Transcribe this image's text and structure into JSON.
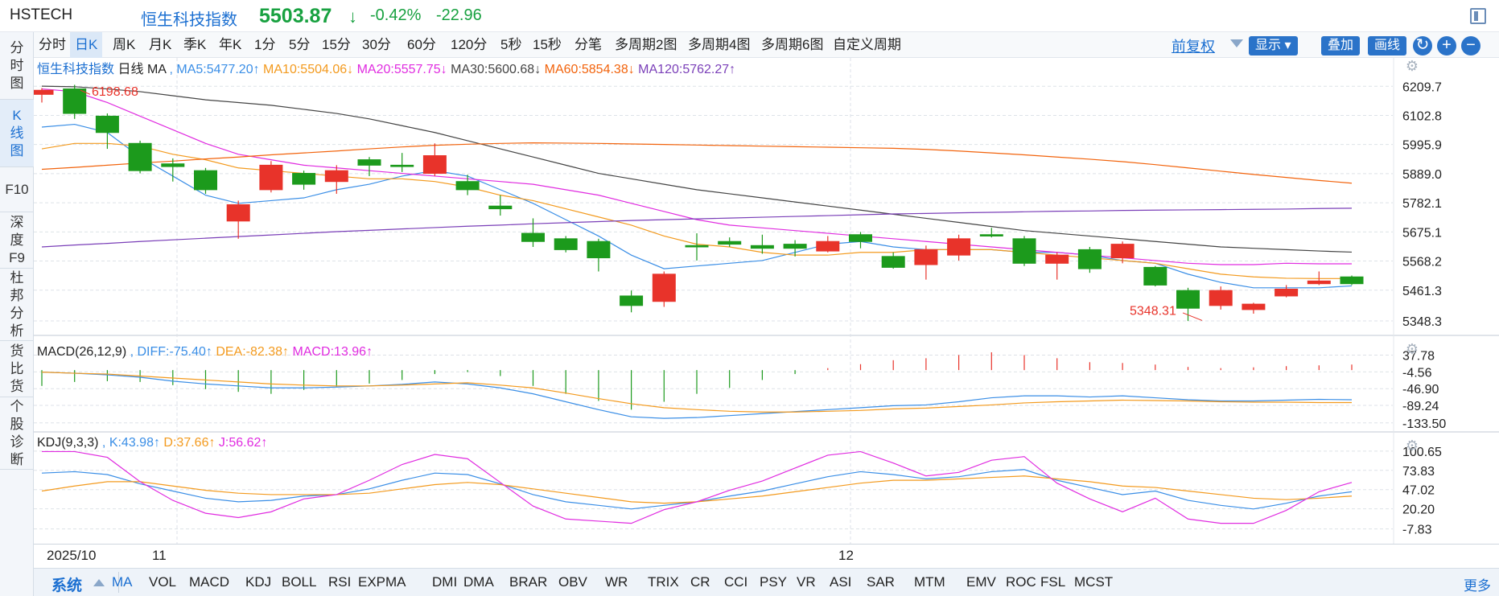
{
  "title": {
    "code": "HSTECH",
    "name": "恒生科技指数",
    "price": "5503.87",
    "arrow": "↓",
    "change_pct": "-0.42%",
    "change": "-22.96"
  },
  "left_tabs": [
    {
      "label": "分时图",
      "active": false
    },
    {
      "label": "K线图",
      "active": true
    },
    {
      "label": "F10",
      "active": false
    },
    {
      "label": "深度F9",
      "active": false
    },
    {
      "label": "杜邦分析",
      "active": false
    },
    {
      "label": "货比货",
      "active": false
    },
    {
      "label": "个股诊断",
      "active": false
    }
  ],
  "toolbar": {
    "periods": [
      "分时",
      "日K",
      "周K",
      "月K",
      "季K",
      "年K",
      "1分",
      "5分",
      "15分",
      "30分",
      "60分",
      "120分",
      "5秒",
      "15秒",
      "分笔",
      "多周期2图",
      "多周期4图",
      "多周期6图",
      "自定义周期"
    ],
    "active_period": "日K",
    "fuquan": "前复权",
    "display_label": "显示",
    "overlay_label": "叠加",
    "draw_label": "画线"
  },
  "main_legend": {
    "name": "恒生科技指数",
    "period": "日线",
    "indicator": "MA",
    "items": [
      {
        "text": "MA5:5477.20↑",
        "color": "#3a8ee6"
      },
      {
        "text": "MA10:5504.06↓",
        "color": "#f39a1e"
      },
      {
        "text": "MA20:5557.75↓",
        "color": "#e02ce0"
      },
      {
        "text": "MA30:5600.68↓",
        "color": "#444444"
      },
      {
        "text": "MA60:5854.38↓",
        "color": "#f2630c"
      },
      {
        "text": "MA120:5762.27↑",
        "color": "#7a3fb8"
      }
    ]
  },
  "main_axis": [
    "6209.7",
    "6102.8",
    "5995.9",
    "5889.0",
    "5782.1",
    "5675.1",
    "5568.2",
    "5461.3",
    "5348.3"
  ],
  "annotations": {
    "high": "6198.68",
    "low": "5348.31"
  },
  "macd_legend": {
    "name": "MACD(26,12,9)",
    "items": [
      {
        "text": "DIFF:-75.40↑",
        "color": "#3a8ee6"
      },
      {
        "text": "DEA:-82.38↑",
        "color": "#f39a1e"
      },
      {
        "text": "MACD:13.96↑",
        "color": "#e02ce0"
      }
    ]
  },
  "macd_axis": [
    "37.78",
    "-4.56",
    "-46.90",
    "-89.24",
    "-133.50"
  ],
  "kdj_legend": {
    "name": "KDJ(9,3,3)",
    "items": [
      {
        "text": "K:43.98↑",
        "color": "#3a8ee6"
      },
      {
        "text": "D:37.66↑",
        "color": "#f39a1e"
      },
      {
        "text": "J:56.62↑",
        "color": "#e02ce0"
      }
    ]
  },
  "kdj_axis": [
    "100.65",
    "73.83",
    "47.02",
    "20.20",
    "-7.83"
  ],
  "date_labels": [
    "2025/10",
    "11",
    "12"
  ],
  "indicator_bar": {
    "system": "系统",
    "items": [
      "MA",
      "VOL",
      "MACD",
      "KDJ",
      "BOLL",
      "RSI",
      "EXPMA",
      "DMI",
      "DMA",
      "BRAR",
      "OBV",
      "WR",
      "TRIX",
      "CR",
      "CCI",
      "PSY",
      "VR",
      "ASI",
      "SAR",
      "MTM",
      "EMV",
      "ROC",
      "FSL",
      "MCST"
    ],
    "active": "MA",
    "more": "更多"
  },
  "chart_data": {
    "type": "candlestick",
    "main_ylim": [
      5310,
      6240
    ],
    "candles": [
      {
        "o": 6180,
        "c": 6195,
        "h": 6203,
        "l": 6150
      },
      {
        "o": 6200,
        "c": 6110,
        "h": 6215,
        "l": 6090
      },
      {
        "o": 6100,
        "c": 6040,
        "h": 6110,
        "l": 5980
      },
      {
        "o": 6000,
        "c": 5900,
        "h": 6010,
        "l": 5890
      },
      {
        "o": 5925,
        "c": 5915,
        "h": 5945,
        "l": 5860
      },
      {
        "o": 5900,
        "c": 5830,
        "h": 5910,
        "l": 5815
      },
      {
        "o": 5715,
        "c": 5775,
        "h": 5790,
        "l": 5650
      },
      {
        "o": 5830,
        "c": 5920,
        "h": 5935,
        "l": 5820
      },
      {
        "o": 5890,
        "c": 5850,
        "h": 5900,
        "l": 5830
      },
      {
        "o": 5860,
        "c": 5900,
        "h": 5920,
        "l": 5815
      },
      {
        "o": 5940,
        "c": 5920,
        "h": 5950,
        "l": 5880
      },
      {
        "o": 5920,
        "c": 5915,
        "h": 5965,
        "l": 5895
      },
      {
        "o": 5890,
        "c": 5955,
        "h": 6000,
        "l": 5880
      },
      {
        "o": 5860,
        "c": 5830,
        "h": 5885,
        "l": 5810
      },
      {
        "o": 5770,
        "c": 5760,
        "h": 5810,
        "l": 5735
      },
      {
        "o": 5670,
        "c": 5640,
        "h": 5725,
        "l": 5620
      },
      {
        "o": 5650,
        "c": 5610,
        "h": 5660,
        "l": 5600
      },
      {
        "o": 5640,
        "c": 5580,
        "h": 5650,
        "l": 5530
      },
      {
        "o": 5440,
        "c": 5405,
        "h": 5460,
        "l": 5380
      },
      {
        "o": 5420,
        "c": 5520,
        "h": 5530,
        "l": 5400
      },
      {
        "o": 5625,
        "c": 5620,
        "h": 5670,
        "l": 5570
      },
      {
        "o": 5640,
        "c": 5630,
        "h": 5655,
        "l": 5620
      },
      {
        "o": 5625,
        "c": 5615,
        "h": 5665,
        "l": 5595
      },
      {
        "o": 5630,
        "c": 5615,
        "h": 5645,
        "l": 5585
      },
      {
        "o": 5605,
        "c": 5640,
        "h": 5660,
        "l": 5600
      },
      {
        "o": 5665,
        "c": 5640,
        "h": 5675,
        "l": 5615
      },
      {
        "o": 5585,
        "c": 5545,
        "h": 5600,
        "l": 5540
      },
      {
        "o": 5555,
        "c": 5610,
        "h": 5625,
        "l": 5500
      },
      {
        "o": 5590,
        "c": 5650,
        "h": 5665,
        "l": 5570
      },
      {
        "o": 5665,
        "c": 5660,
        "h": 5690,
        "l": 5655
      },
      {
        "o": 5650,
        "c": 5560,
        "h": 5660,
        "l": 5550
      },
      {
        "o": 5560,
        "c": 5590,
        "h": 5600,
        "l": 5500
      },
      {
        "o": 5610,
        "c": 5540,
        "h": 5620,
        "l": 5525
      },
      {
        "o": 5580,
        "c": 5630,
        "h": 5640,
        "l": 5560
      },
      {
        "o": 5545,
        "c": 5480,
        "h": 5550,
        "l": 5475
      },
      {
        "o": 5460,
        "c": 5395,
        "h": 5470,
        "l": 5348
      },
      {
        "o": 5405,
        "c": 5460,
        "h": 5475,
        "l": 5390
      },
      {
        "o": 5390,
        "c": 5410,
        "h": 5415,
        "l": 5375
      },
      {
        "o": 5440,
        "c": 5465,
        "h": 5480,
        "l": 5435
      },
      {
        "o": 5485,
        "c": 5495,
        "h": 5530,
        "l": 5480
      },
      {
        "o": 5510,
        "c": 5485,
        "h": 5515,
        "l": 5480
      }
    ],
    "ma": {
      "MA5": [
        6060,
        6070,
        6040,
        5950,
        5880,
        5810,
        5780,
        5790,
        5800,
        5830,
        5850,
        5880,
        5900,
        5880,
        5830,
        5780,
        5720,
        5660,
        5590,
        5540,
        5550,
        5560,
        5570,
        5600,
        5630,
        5640,
        5620,
        5610,
        5610,
        5610,
        5600,
        5600,
        5590,
        5570,
        5560,
        5520,
        5490,
        5470,
        5470,
        5470,
        5477
      ],
      "MA10": [
        5980,
        6000,
        6000,
        5990,
        5960,
        5940,
        5910,
        5900,
        5890,
        5880,
        5870,
        5870,
        5860,
        5840,
        5810,
        5790,
        5760,
        5730,
        5700,
        5660,
        5630,
        5620,
        5600,
        5590,
        5590,
        5600,
        5600,
        5610,
        5610,
        5610,
        5600,
        5590,
        5580,
        5570,
        5560,
        5540,
        5520,
        5510,
        5505,
        5504,
        5504
      ],
      "MA20": [
        6200,
        6190,
        6150,
        6100,
        6050,
        6000,
        5960,
        5940,
        5920,
        5910,
        5900,
        5890,
        5880,
        5870,
        5860,
        5850,
        5830,
        5810,
        5780,
        5750,
        5720,
        5700,
        5690,
        5680,
        5670,
        5660,
        5650,
        5640,
        5630,
        5620,
        5610,
        5600,
        5590,
        5580,
        5570,
        5560,
        5555,
        5555,
        5560,
        5558,
        5558
      ],
      "MA30": [
        6210,
        6208,
        6200,
        6190,
        6175,
        6160,
        6150,
        6140,
        6125,
        6110,
        6090,
        6065,
        6040,
        6010,
        5980,
        5950,
        5920,
        5890,
        5870,
        5850,
        5830,
        5815,
        5800,
        5785,
        5770,
        5755,
        5740,
        5725,
        5710,
        5695,
        5680,
        5670,
        5660,
        5650,
        5640,
        5630,
        5620,
        5615,
        5610,
        5605,
        5601
      ],
      "MA60": [
        5905,
        5912,
        5920,
        5928,
        5935,
        5943,
        5950,
        5958,
        5965,
        5972,
        5980,
        5987,
        5993,
        5997,
        6000,
        6002,
        6001,
        6000,
        5998,
        5996,
        5994,
        5992,
        5990,
        5988,
        5986,
        5984,
        5982,
        5978,
        5972,
        5965,
        5958,
        5950,
        5942,
        5933,
        5922,
        5910,
        5898,
        5886,
        5875,
        5864,
        5854
      ],
      "MA120": [
        5620,
        5627,
        5633,
        5640,
        5646,
        5652,
        5658,
        5664,
        5670,
        5676,
        5681,
        5686,
        5691,
        5696,
        5700,
        5705,
        5709,
        5713,
        5717,
        5720,
        5723,
        5726,
        5729,
        5732,
        5735,
        5738,
        5741,
        5743,
        5745,
        5747,
        5749,
        5751,
        5752,
        5754,
        5755,
        5756,
        5757,
        5758,
        5759,
        5761,
        5762
      ]
    },
    "macd_ylim": [
      -140,
      45
    ],
    "macd": {
      "DIFF": [
        -5,
        -8,
        -12,
        -18,
        -28,
        -35,
        -40,
        -45,
        -45,
        -43,
        -40,
        -36,
        -30,
        -35,
        -45,
        -60,
        -80,
        -100,
        -118,
        -122,
        -120,
        -115,
        -110,
        -105,
        -100,
        -95,
        -90,
        -88,
        -80,
        -70,
        -65,
        -65,
        -68,
        -65,
        -70,
        -75,
        -78,
        -78,
        -76,
        -74,
        -75
      ],
      "DEA": [
        -5,
        -8,
        -10,
        -15,
        -20,
        -25,
        -30,
        -35,
        -38,
        -40,
        -40,
        -38,
        -35,
        -32,
        -38,
        -45,
        -58,
        -72,
        -85,
        -95,
        -100,
        -104,
        -106,
        -106,
        -104,
        -102,
        -98,
        -96,
        -92,
        -88,
        -83,
        -80,
        -78,
        -76,
        -77,
        -78,
        -80,
        -81,
        -81,
        -82,
        -82
      ],
      "MACD": [
        -40,
        -30,
        -28,
        -30,
        -38,
        -48,
        -55,
        -60,
        -50,
        -42,
        -34,
        -25,
        -10,
        -5,
        -15,
        -40,
        -60,
        -78,
        -100,
        -80,
        -60,
        -45,
        -25,
        -10,
        5,
        15,
        25,
        30,
        38,
        45,
        38,
        30,
        20,
        18,
        14,
        8,
        5,
        7,
        10,
        12,
        14
      ]
    },
    "kdj_ylim": [
      -15,
      105
    ],
    "kdj": {
      "K": [
        70,
        72,
        68,
        55,
        45,
        35,
        30,
        32,
        38,
        40,
        48,
        60,
        70,
        68,
        55,
        40,
        30,
        25,
        20,
        25,
        30,
        38,
        45,
        55,
        65,
        72,
        68,
        62,
        65,
        72,
        75,
        60,
        50,
        40,
        45,
        32,
        25,
        20,
        28,
        38,
        44
      ],
      "D": [
        45,
        52,
        58,
        58,
        52,
        46,
        42,
        40,
        40,
        40,
        42,
        48,
        54,
        57,
        54,
        48,
        42,
        36,
        30,
        28,
        30,
        34,
        38,
        44,
        50,
        56,
        60,
        60,
        62,
        64,
        66,
        62,
        58,
        52,
        50,
        45,
        40,
        35,
        33,
        35,
        38
      ],
      "J": [
        100,
        100,
        92,
        58,
        32,
        14,
        8,
        16,
        34,
        40,
        60,
        82,
        96,
        90,
        57,
        24,
        6,
        3,
        0,
        19,
        30,
        46,
        59,
        77,
        95,
        100,
        84,
        66,
        71,
        88,
        93,
        56,
        34,
        16,
        35,
        6,
        0,
        0,
        18,
        44,
        57
      ]
    }
  }
}
